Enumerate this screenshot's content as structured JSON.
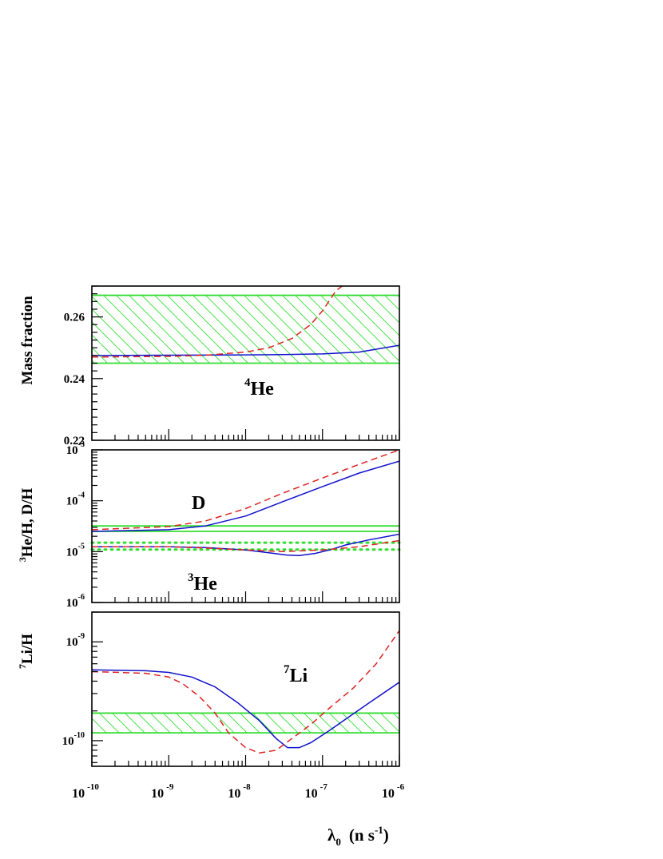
{
  "colors": {
    "observation": "#33dd33",
    "solid_curve": "#1111cc",
    "dashed_curve": "#dd2222",
    "axis": "#000000"
  },
  "xaxis": {
    "label_main": "λ",
    "label_sub": "0",
    "label_unit": "(n s",
    "label_unit_exp": "-1",
    "label_close": ")",
    "scale": "log",
    "range": [
      1e-10,
      1e-06
    ],
    "ticks": [
      {
        "base": "10",
        "exp": "-10",
        "value": 1e-10
      },
      {
        "base": "10",
        "exp": "-9",
        "value": 1e-09
      },
      {
        "base": "10",
        "exp": "-8",
        "value": 1e-08
      },
      {
        "base": "10",
        "exp": "-7",
        "value": 1e-07
      },
      {
        "base": "10",
        "exp": "-6",
        "value": 1e-06
      }
    ]
  },
  "chart_data": [
    {
      "type": "line",
      "panel": "he4",
      "ylabel": "Mass fraction",
      "ylim": [
        0.22,
        0.27
      ],
      "yscale": "linear",
      "yticks": [
        {
          "label": "0.26",
          "value": 0.26
        },
        {
          "label": "0.24",
          "value": 0.24
        },
        {
          "label": "0.22",
          "value": 0.22
        }
      ],
      "annotation": {
        "sup": "4",
        "text": "He"
      },
      "bands": [
        {
          "y1": 0.245,
          "y2": 0.267,
          "hatched": true
        }
      ],
      "dotted_lines": [],
      "series": [
        {
          "style": "solid",
          "x": [
            1e-10,
            1e-09,
            1e-08,
            3e-08,
            1e-07,
            3e-07,
            1e-06
          ],
          "y": [
            0.2475,
            0.2476,
            0.2477,
            0.2478,
            0.248,
            0.2486,
            0.2508
          ]
        },
        {
          "style": "dashed",
          "x": [
            1e-10,
            1e-09,
            3e-09,
            1e-08,
            2e-08,
            4e-08,
            7e-08,
            1e-07,
            1.5e-07,
            1.8e-07
          ],
          "y": [
            0.247,
            0.2472,
            0.2476,
            0.2486,
            0.25,
            0.253,
            0.2575,
            0.262,
            0.2685,
            0.27
          ]
        }
      ]
    },
    {
      "type": "line",
      "panel": "d-he3",
      "ylabel_sup": "3",
      "ylabel": "He/H, D/H",
      "ylim": [
        1e-06,
        0.001
      ],
      "yscale": "log",
      "yticks": [
        {
          "base": "10",
          "exp": "-3",
          "value": 0.001
        },
        {
          "base": "10",
          "exp": "-4",
          "value": 0.0001
        },
        {
          "base": "10",
          "exp": "-5",
          "value": 1e-05
        },
        {
          "base": "10",
          "exp": "-6",
          "value": 1e-06
        }
      ],
      "annotations": [
        {
          "sup": "",
          "text": "D"
        },
        {
          "sup": "3",
          "text": "He"
        }
      ],
      "bands": [
        {
          "y1": 2.5e-05,
          "y2": 3.2e-05,
          "hatched": false
        }
      ],
      "dotted_lines": [
        1.5e-05,
        1.1e-05
      ],
      "series": [
        {
          "style": "solid",
          "group": "D",
          "x": [
            1e-10,
            1e-09,
            3e-09,
            1e-08,
            3e-08,
            1e-07,
            3e-07,
            1e-06
          ],
          "y": [
            2.5e-05,
            2.7e-05,
            3.2e-05,
            5e-05,
            9.5e-05,
            0.00019,
            0.00035,
            0.0006
          ]
        },
        {
          "style": "dashed",
          "group": "D",
          "x": [
            1e-10,
            1e-09,
            3e-09,
            1e-08,
            3e-08,
            1e-07,
            3e-07,
            1e-06
          ],
          "y": [
            2.7e-05,
            3.1e-05,
            4e-05,
            7e-05,
            0.00014,
            0.00028,
            0.00052,
            0.001
          ]
        },
        {
          "style": "solid",
          "group": "He3",
          "x": [
            1e-10,
            1e-09,
            3e-09,
            1e-08,
            2e-08,
            3.5e-08,
            5e-08,
            8e-08,
            1.3e-07,
            2e-07,
            4e-07,
            1e-06
          ],
          "y": [
            1.25e-05,
            1.25e-05,
            1.2e-05,
            1.08e-05,
            9.5e-06,
            8.5e-06,
            8.4e-06,
            9.2e-06,
            1.1e-05,
            1.35e-05,
            1.7e-05,
            2.2e-05
          ]
        },
        {
          "style": "dashed",
          "group": "He3",
          "x": [
            1e-10,
            1e-09,
            3e-09,
            1e-08,
            3e-08,
            1e-07,
            3e-07,
            1e-06
          ],
          "y": [
            1.25e-05,
            1.25e-05,
            1.18e-05,
            1.08e-05,
            1e-05,
            1.08e-05,
            1.25e-05,
            1.65e-05
          ]
        }
      ]
    },
    {
      "type": "line",
      "panel": "li7",
      "ylabel_sup": "7",
      "ylabel": "Li/H",
      "ylim": [
        5.5e-11,
        2e-09
      ],
      "yscale": "log",
      "yticks": [
        {
          "base": "10",
          "exp": "-9",
          "value": 1e-09
        },
        {
          "base": "10",
          "exp": "-10",
          "value": 1e-10
        }
      ],
      "annotation": {
        "sup": "7",
        "text": "Li"
      },
      "bands": [
        {
          "y1": 1.2e-10,
          "y2": 1.9e-10,
          "hatched": true
        }
      ],
      "dotted_lines": [],
      "series": [
        {
          "style": "solid",
          "x": [
            1e-10,
            5e-10,
            1e-09,
            2e-09,
            4e-09,
            8e-09,
            1.5e-08,
            2.5e-08,
            3.5e-08,
            5e-08,
            7e-08,
            1.2e-07,
            2e-07,
            4e-07,
            1e-06
          ],
          "y": [
            5.2e-10,
            5.1e-10,
            4.9e-10,
            4.4e-10,
            3.5e-10,
            2.4e-10,
            1.6e-10,
            1.05e-10,
            8.5e-11,
            8.5e-11,
            9.5e-11,
            1.25e-10,
            1.65e-10,
            2.4e-10,
            3.9e-10
          ]
        },
        {
          "style": "dashed",
          "x": [
            1e-10,
            5e-10,
            1e-09,
            1.5e-09,
            2.5e-09,
            4e-09,
            6e-09,
            1e-08,
            1.5e-08,
            2.5e-08,
            4e-08,
            7e-08,
            1.2e-07,
            2.5e-07,
            5e-07,
            1e-06
          ],
          "y": [
            5e-10,
            4.8e-10,
            4.4e-10,
            3.8e-10,
            2.8e-10,
            1.9e-10,
            1.2e-10,
            8.5e-11,
            7.5e-11,
            8e-11,
            1.05e-10,
            1.45e-10,
            2.1e-10,
            3.4e-10,
            6e-10,
            1.3e-09
          ]
        }
      ]
    }
  ]
}
